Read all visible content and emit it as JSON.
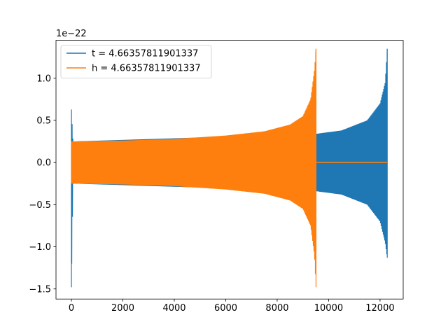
{
  "chart_data": {
    "type": "line",
    "title": "",
    "xlabel": "",
    "ylabel": "",
    "y_offset_text": "1e−22",
    "xlim": [
      -600,
      12900
    ],
    "ylim": [
      -1.62,
      1.45
    ],
    "x_ticks": [
      {
        "value": 0,
        "label": "0"
      },
      {
        "value": 2000,
        "label": "2000"
      },
      {
        "value": 4000,
        "label": "4000"
      },
      {
        "value": 6000,
        "label": "6000"
      },
      {
        "value": 8000,
        "label": "8000"
      },
      {
        "value": 10000,
        "label": "10000"
      },
      {
        "value": 12000,
        "label": "12000"
      }
    ],
    "y_ticks": [
      {
        "value": 1.0,
        "label": "1.0"
      },
      {
        "value": 0.5,
        "label": "0.5"
      },
      {
        "value": 0.0,
        "label": "0.0"
      },
      {
        "value": -0.5,
        "label": "−0.5"
      },
      {
        "value": -1.0,
        "label": "−1.0"
      },
      {
        "value": -1.5,
        "label": "−1.5"
      }
    ],
    "grid": false,
    "legend_position": "top-left",
    "series": [
      {
        "name": "t = 4.66357811901337",
        "color": "#1f77b4",
        "x_start": 0,
        "x_end": 12280,
        "envelope": [
          [
            0,
            -1.48,
            0.63
          ],
          [
            60,
            -0.25,
            0.25
          ],
          [
            9500,
            -0.34,
            0.34
          ],
          [
            10500,
            -0.38,
            0.38
          ],
          [
            11500,
            -0.5,
            0.5
          ],
          [
            12000,
            -0.7,
            0.7
          ],
          [
            12200,
            -0.95,
            0.95
          ],
          [
            12280,
            -1.13,
            1.35
          ]
        ]
      },
      {
        "name": "h = 4.66357811901337",
        "color": "#ff7f0e",
        "x_start": 0,
        "x_end": 9510,
        "zero_tail_end": 12280,
        "envelope": [
          [
            0,
            -0.25,
            0.25
          ],
          [
            2000,
            -0.26,
            0.26
          ],
          [
            4000,
            -0.28,
            0.28
          ],
          [
            6000,
            -0.32,
            0.32
          ],
          [
            7500,
            -0.37,
            0.37
          ],
          [
            8500,
            -0.45,
            0.45
          ],
          [
            9000,
            -0.55,
            0.55
          ],
          [
            9300,
            -0.75,
            0.75
          ],
          [
            9450,
            -1.1,
            1.1
          ],
          [
            9510,
            -1.48,
            1.35
          ]
        ]
      }
    ]
  }
}
